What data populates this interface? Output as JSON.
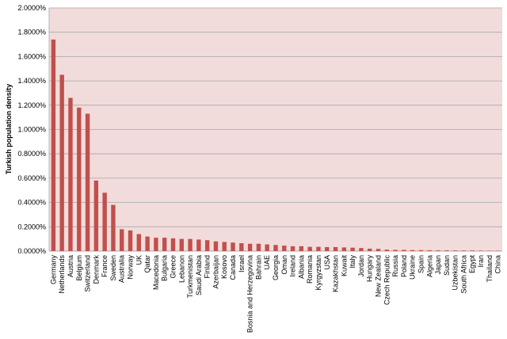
{
  "chart_data": {
    "type": "bar",
    "ylabel": "Turkish population density",
    "categories": [
      "Germany",
      "Netherlands",
      "Austria",
      "Belgium",
      "Switzerland",
      "Denmark",
      "France",
      "Sweden",
      "Australia",
      "Norway",
      "UK",
      "Qatar",
      "Macedonia",
      "Bulgaria",
      "Greece",
      "Lebanon",
      "Turkmenistan",
      "Saudi Arabia",
      "Finland",
      "Azerbaijan",
      "Kosovo",
      "Canada",
      "Israel",
      "Bosnia and Herzegovina",
      "Bahrain",
      "UAE",
      "Georgia",
      "Oman",
      "Ireland",
      "Albania",
      "Romania",
      "Kyrgyzstan",
      "USA",
      "Kazakhstan",
      "Kuwait",
      "Italy",
      "Jordan",
      "Hungary",
      "New Zealand",
      "Czech Republic",
      "Russia",
      "Poland",
      "Ukraine",
      "Spain",
      "Algeria",
      "Japan",
      "Sudan",
      "Uzbekistan",
      "South Africa",
      "Egypt",
      "Iran",
      "Thailand",
      "China"
    ],
    "values": [
      1.74,
      1.45,
      1.26,
      1.18,
      1.13,
      0.58,
      0.48,
      0.38,
      0.18,
      0.17,
      0.14,
      0.12,
      0.11,
      0.11,
      0.105,
      0.1,
      0.1,
      0.095,
      0.09,
      0.08,
      0.075,
      0.07,
      0.065,
      0.06,
      0.06,
      0.055,
      0.05,
      0.045,
      0.04,
      0.04,
      0.035,
      0.035,
      0.033,
      0.033,
      0.03,
      0.028,
      0.025,
      0.02,
      0.018,
      0.012,
      0.01,
      0.01,
      0.008,
      0.008,
      0.007,
      0.006,
      0.006,
      0.005,
      0.005,
      0.005,
      0.004,
      0.003,
      0.003
    ],
    "color": "#c0504d",
    "background": "#f2dcdb",
    "ylim": [
      0,
      2
    ],
    "yticks": [
      {
        "value": 0,
        "label": "0.0000%"
      },
      {
        "value": 0.2,
        "label": "0.2000%"
      },
      {
        "value": 0.4,
        "label": "0.4000%"
      },
      {
        "value": 0.6,
        "label": "0.6000%"
      },
      {
        "value": 0.8,
        "label": "0.8000%"
      },
      {
        "value": 1,
        "label": "1.0000%"
      },
      {
        "value": 1.2,
        "label": "1.2000%"
      },
      {
        "value": 1.4,
        "label": "1.4000%"
      },
      {
        "value": 1.6,
        "label": "1.6000%"
      },
      {
        "value": 1.8,
        "label": "1.8000%"
      },
      {
        "value": 2,
        "label": "2.0000%"
      }
    ],
    "grid": true
  }
}
